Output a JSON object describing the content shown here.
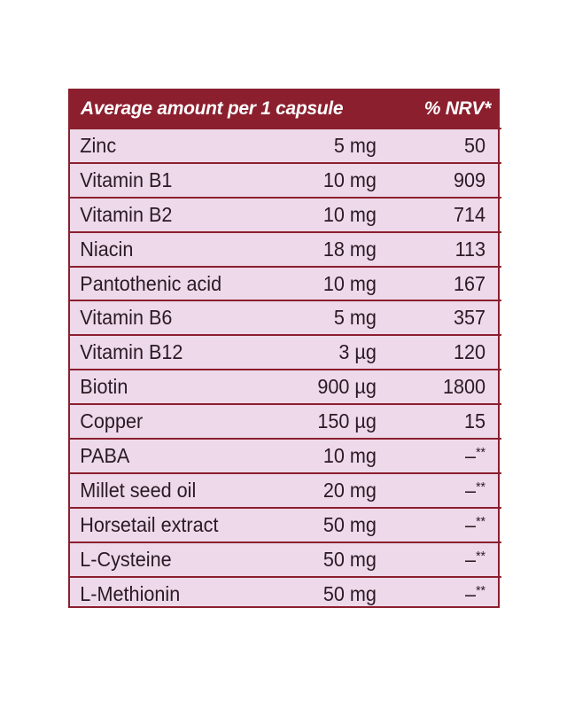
{
  "table": {
    "header": {
      "amount_label": "Average amount per 1 capsule",
      "nrv_label": "% NRV*"
    },
    "rows": [
      {
        "name": "Zinc",
        "amount": "5 mg",
        "nrv": "50",
        "nrv_note": ""
      },
      {
        "name": "Vitamin B1",
        "amount": "10 mg",
        "nrv": "909",
        "nrv_note": ""
      },
      {
        "name": "Vitamin B2",
        "amount": "10 mg",
        "nrv": "714",
        "nrv_note": ""
      },
      {
        "name": "Niacin",
        "amount": "18 mg",
        "nrv": "113",
        "nrv_note": ""
      },
      {
        "name": "Pantothenic acid",
        "amount": "10 mg",
        "nrv": "167",
        "nrv_note": ""
      },
      {
        "name": "Vitamin B6",
        "amount": "5 mg",
        "nrv": "357",
        "nrv_note": ""
      },
      {
        "name": "Vitamin B12",
        "amount": "3 µg",
        "nrv": "120",
        "nrv_note": ""
      },
      {
        "name": "Biotin",
        "amount": "900 µg",
        "nrv": "1800",
        "nrv_note": ""
      },
      {
        "name": "Copper",
        "amount": "150 µg",
        "nrv": "15",
        "nrv_note": ""
      },
      {
        "name": "PABA",
        "amount": "10 mg",
        "nrv": "–",
        "nrv_note": "**"
      },
      {
        "name": "Millet seed oil",
        "amount": "20 mg",
        "nrv": "–",
        "nrv_note": "**"
      },
      {
        "name": "Horsetail extract",
        "amount": "50 mg",
        "nrv": "–",
        "nrv_note": "**"
      },
      {
        "name": "L-Cysteine",
        "amount": "50 mg",
        "nrv": "–",
        "nrv_note": "**"
      },
      {
        "name": "L-Methionin",
        "amount": "50 mg",
        "nrv": "–",
        "nrv_note": "**"
      }
    ]
  },
  "colors": {
    "header_bg": "#8b1f2e",
    "panel_bg": "#eed9ea",
    "text": "#2a1a24"
  }
}
